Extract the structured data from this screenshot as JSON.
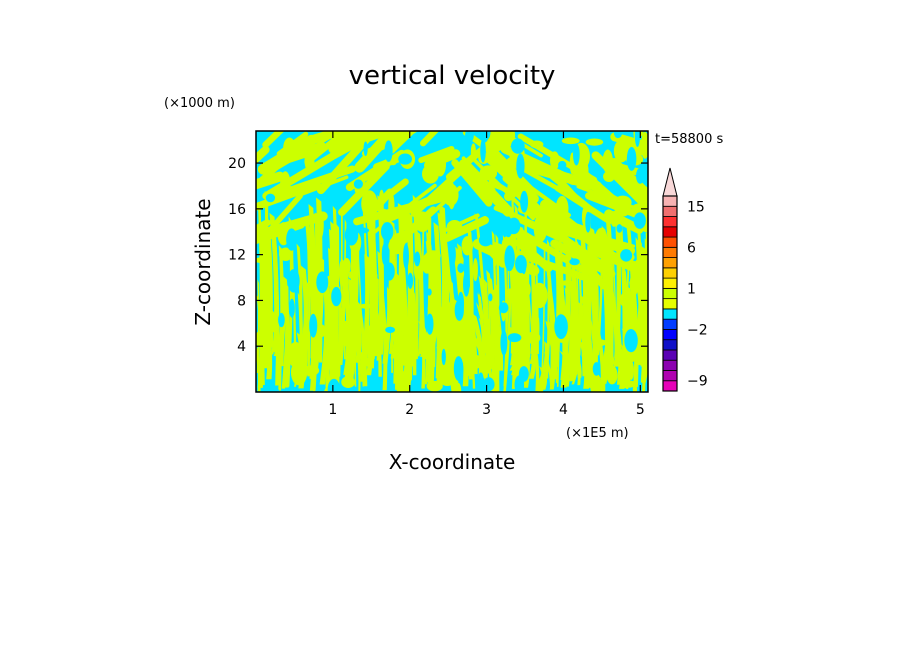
{
  "chart_data": {
    "type": "heatmap",
    "title": "vertical velocity",
    "xlabel": "X-coordinate",
    "ylabel": "Z-coordinate",
    "x_unit": "(×1E5 m)",
    "y_unit": "(×1000 m)",
    "time_label": "t=58800 s",
    "xlim": [
      0,
      5.1
    ],
    "ylim": [
      0,
      22.8
    ],
    "x_ticks": [
      1,
      2,
      3,
      4,
      5
    ],
    "x_tick_labels": [
      "1",
      "2",
      "3",
      "4",
      "5"
    ],
    "y_ticks": [
      4,
      8,
      12,
      16,
      20
    ],
    "y_tick_labels": [
      "4",
      "8",
      "12",
      "16",
      "20"
    ],
    "field_colors": {
      "negative": "#00e5ff",
      "positive": "#ccff00"
    },
    "colorbar": {
      "levels": [
        -10,
        -9,
        -8,
        -6,
        -4,
        -3,
        -2,
        -1,
        -0.5,
        0.5,
        1,
        2,
        3,
        4,
        6,
        8,
        10,
        12,
        15,
        20
      ],
      "colors": [
        "#e600b8",
        "#b000b0",
        "#8c00b0",
        "#5a00b4",
        "#1010c8",
        "#0000ff",
        "#003cff",
        "#00e5ff",
        "#e6ff00",
        "#ccff00",
        "#fff000",
        "#ffd000",
        "#ffa000",
        "#ff7a00",
        "#ff5000",
        "#e60000",
        "#ff3030",
        "#f07070",
        "#f7b3b3"
      ],
      "extend": "max",
      "label_values": [
        15,
        6,
        1,
        -2,
        -9
      ],
      "labels": [
        "15",
        "6",
        "1",
        "−2",
        "−9"
      ]
    }
  }
}
